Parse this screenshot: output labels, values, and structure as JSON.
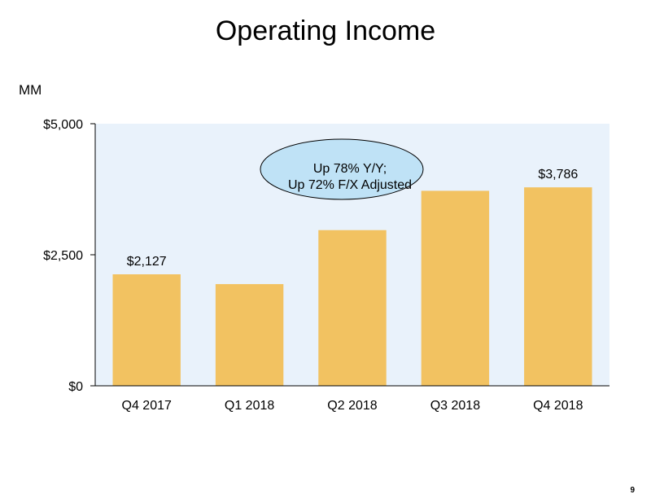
{
  "title": "Operating Income",
  "unit_label": "MM",
  "page_number": "9",
  "callout": {
    "line1": "Up 78% Y/Y;",
    "line2": "Up 72% F/X Adjusted"
  },
  "colors": {
    "bar": "#F2C261",
    "plot_bg": "#E9F2FB",
    "callout_fill": "#BFE2F6"
  },
  "chart_data": {
    "type": "bar",
    "title": "Operating Income",
    "xlabel": "",
    "ylabel": "MM",
    "ylim": [
      0,
      5000
    ],
    "y_ticks": [
      {
        "value": 0,
        "label": "$0"
      },
      {
        "value": 2500,
        "label": "$2,500"
      },
      {
        "value": 5000,
        "label": "$5,000"
      }
    ],
    "categories": [
      "Q4 2017",
      "Q1 2018",
      "Q2 2018",
      "Q3 2018",
      "Q4 2018"
    ],
    "values": [
      2127,
      1940,
      2970,
      3720,
      3786
    ],
    "data_labels": [
      "$2,127",
      "",
      "",
      "",
      "$3,786"
    ],
    "grid": false,
    "legend": "none"
  }
}
